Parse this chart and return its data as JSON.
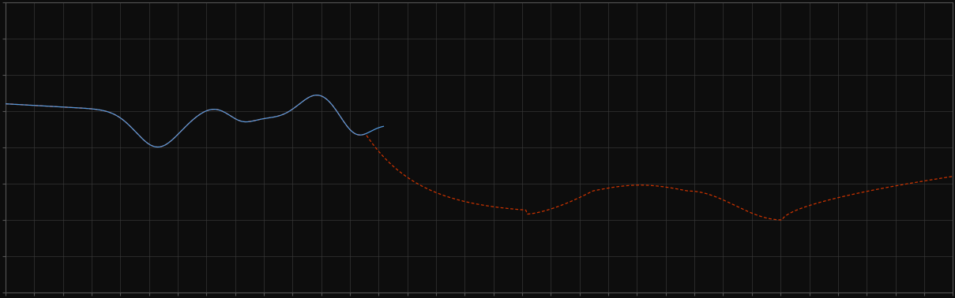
{
  "background_color": "#0d0d0d",
  "plot_bg_color": "#0d0d0d",
  "grid_color": "#3a3a3a",
  "line1_color": "#5599dd",
  "line2_color": "#cc3300",
  "figsize": [
    12.09,
    3.78
  ],
  "dpi": 100,
  "xlim": [
    0,
    100
  ],
  "ylim": [
    0,
    10
  ],
  "grid_alpha": 0.9,
  "grid_linewidth": 0.5,
  "line_linewidth": 0.9,
  "spine_color": "#555555",
  "n_xticks": 34,
  "n_yticks": 9
}
